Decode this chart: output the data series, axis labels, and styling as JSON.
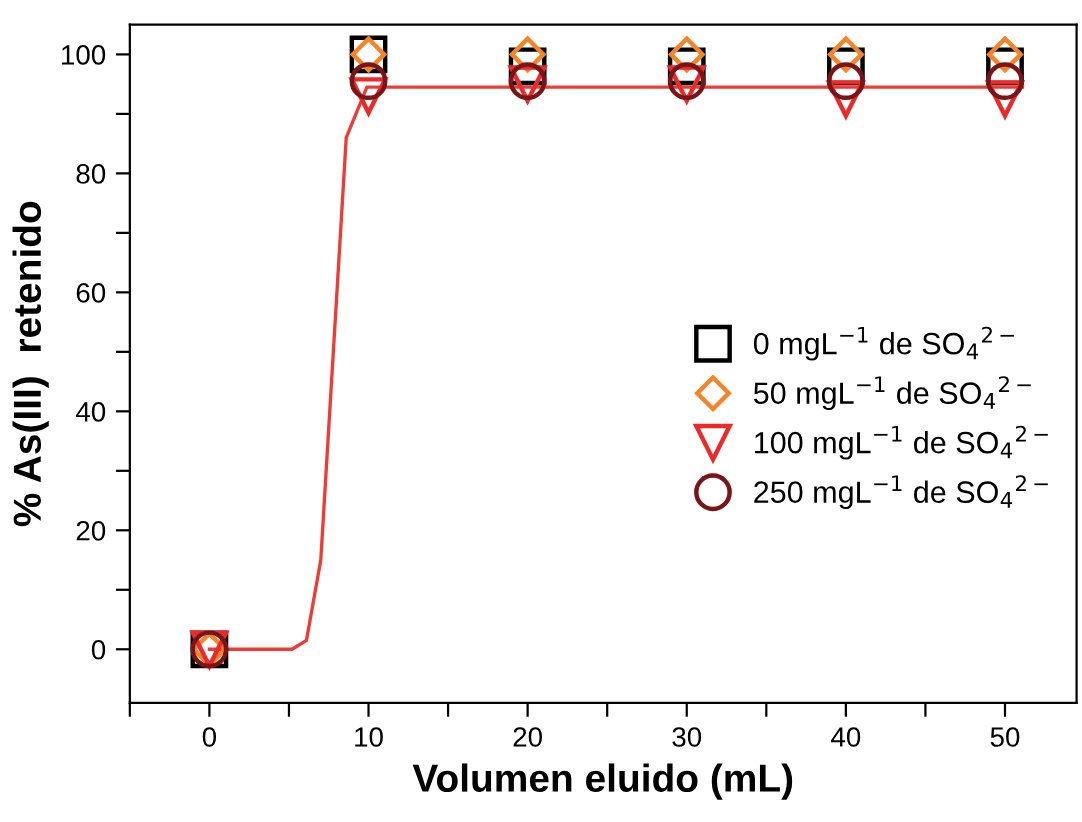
{
  "chart_data": {
    "type": "scatter",
    "xlabel": "Volumen eluido (mL)",
    "ylabel": "% As(III)  retenido",
    "x": [
      0,
      10,
      20,
      30,
      40,
      50
    ],
    "series": [
      {
        "name": "0 mgL$^{−1}$ de SO$_{4}$$^{2−}$",
        "color": "#000000",
        "marker": "square",
        "values": [
          0,
          100,
          98,
          98,
          98,
          98
        ]
      },
      {
        "name": "50 mgL$^{−1}$ de SO$_{4}$$^{2−}$",
        "color": "#f58426",
        "marker": "diamond",
        "values": [
          0,
          100,
          100,
          100,
          100,
          100
        ]
      },
      {
        "name": "100 mgL$^{−1}$ de SO$_{4}$$^{2−}$",
        "color": "#ec2a2a",
        "marker": "triangle",
        "values": [
          0,
          93,
          95,
          95,
          92.5,
          92.5
        ]
      },
      {
        "name": "250 mgL$^{−1}$ de SO$_{4}$$^{2−}$",
        "color": "#7a1416",
        "marker": "circle",
        "values": [
          0,
          95.5,
          95.5,
          95.5,
          95.5,
          95.5
        ]
      },
      {
        "type": "line",
        "color": "#ef3b36",
        "marker": "none",
        "x": [
          0,
          5.2,
          6.1,
          7.0,
          8.6,
          9.9,
          12,
          20,
          30,
          40,
          51.1
        ],
        "values": [
          0,
          0,
          1.5,
          15,
          86,
          94.5,
          94.5,
          94.5,
          94.5,
          94.5,
          94.5
        ]
      }
    ],
    "xlim": [
      -5,
      54.5
    ],
    "ylim": [
      -9,
      105
    ],
    "xticks": [
      {
        "value": -5,
        "label": null
      },
      0,
      {
        "value": 5,
        "label": null
      },
      10,
      {
        "value": 15,
        "label": null
      },
      20,
      {
        "value": 25,
        "label": null
      },
      30,
      {
        "value": 35,
        "label": null
      },
      40,
      {
        "value": 45,
        "label": null
      },
      50
    ],
    "yticks": [
      0,
      {
        "value": 10,
        "label": null
      },
      20,
      {
        "value": 30,
        "label": null
      },
      40,
      {
        "value": 50,
        "label": null
      },
      60,
      {
        "value": 70,
        "label": null
      },
      80,
      {
        "value": 90,
        "label": null
      },
      100
    ],
    "grid": false,
    "legend": "right"
  }
}
